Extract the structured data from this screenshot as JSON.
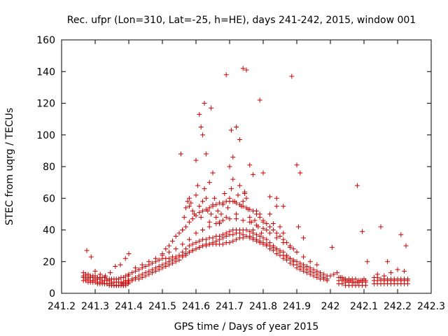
{
  "chart_data": {
    "type": "scatter",
    "title": "Rec. ufpr (Lon=310, Lat=-25, h=HE), days 241-242, 2015, window 001",
    "xlabel": "GPS time / Days of year 2015",
    "ylabel": "STEC from uqrg / TECUs",
    "xlim": [
      241.2,
      242.3
    ],
    "ylim": [
      0,
      160
    ],
    "x_ticks": [
      241.2,
      241.3,
      241.4,
      241.5,
      241.6,
      241.7,
      241.8,
      241.9,
      242.0,
      242.1,
      242.2,
      242.3
    ],
    "x_tick_labels": [
      "241.2",
      "241.3",
      "241.4",
      "241.5",
      "241.6",
      "241.7",
      "241.8",
      "241.9",
      "242",
      "242.1",
      "242.2",
      "242.3"
    ],
    "y_ticks": [
      0,
      20,
      40,
      60,
      80,
      100,
      120,
      140,
      160
    ],
    "y_tick_labels": [
      "0",
      "20",
      "40",
      "60",
      "80",
      "100",
      "120",
      "140",
      "160"
    ],
    "grid": false,
    "legend": "none",
    "marker": "+",
    "color": "#cc0000",
    "series": [
      {
        "x": [
          241.265,
          241.272,
          241.279,
          241.286,
          241.293,
          241.3,
          241.307,
          241.314,
          241.321,
          241.328,
          241.335,
          241.342,
          241.349,
          241.356,
          241.363,
          241.37,
          241.377,
          241.384,
          241.391,
          241.398,
          241.265,
          241.272,
          241.279,
          241.286,
          241.293,
          241.3,
          241.307,
          241.314,
          241.321,
          241.328,
          241.335,
          241.342,
          241.349,
          241.356,
          241.363,
          241.37,
          241.377,
          241.384,
          241.391,
          241.398,
          241.265,
          241.272,
          241.279,
          241.286,
          241.293,
          241.3,
          241.307,
          241.314,
          241.321,
          241.328,
          241.335,
          241.342,
          241.349,
          241.356,
          241.363,
          241.37,
          241.377,
          241.384,
          241.391,
          241.398,
          241.265,
          241.272,
          241.279,
          241.286,
          241.293,
          241.3,
          241.307,
          241.314,
          241.321,
          241.328,
          241.335,
          241.342,
          241.349,
          241.356,
          241.363,
          241.37,
          241.377,
          241.384,
          241.391,
          241.398,
          241.275,
          241.288,
          241.3,
          241.315,
          241.33,
          241.345,
          241.36,
          241.375,
          241.39,
          241.4
        ],
        "y": [
          10,
          9,
          9,
          8,
          8,
          8,
          7,
          7,
          7,
          6,
          6,
          6,
          6,
          5,
          5,
          5,
          5,
          5,
          6,
          6,
          11,
          11,
          10,
          10,
          10,
          9,
          9,
          9,
          8,
          8,
          8,
          8,
          7,
          7,
          7,
          7,
          7,
          7,
          8,
          8,
          8,
          8,
          7,
          7,
          7,
          7,
          6,
          6,
          6,
          6,
          6,
          5,
          5,
          5,
          5,
          5,
          5,
          5,
          5,
          6,
          13,
          12,
          12,
          11,
          11,
          11,
          10,
          10,
          10,
          10,
          9,
          9,
          9,
          9,
          9,
          9,
          10,
          10,
          11,
          11,
          27,
          23,
          14,
          12,
          11,
          13,
          17,
          18,
          22,
          25
        ]
      },
      {
        "x": [
          241.4,
          241.41,
          241.42,
          241.43,
          241.44,
          241.45,
          241.46,
          241.47,
          241.48,
          241.49,
          241.5,
          241.51,
          241.52,
          241.53,
          241.54,
          241.55,
          241.56,
          241.57,
          241.58,
          241.59,
          241.6,
          241.61,
          241.62,
          241.63,
          241.64,
          241.65,
          241.66,
          241.67,
          241.68,
          241.69,
          241.7,
          241.71,
          241.72,
          241.73,
          241.74,
          241.75,
          241.76,
          241.77,
          241.78,
          241.79,
          241.8,
          241.81,
          241.82,
          241.83,
          241.84,
          241.85,
          241.86,
          241.87,
          241.88,
          241.89,
          241.9,
          241.91,
          241.92,
          241.93,
          241.94,
          241.95,
          241.96,
          241.97,
          241.98,
          241.99
        ],
        "y": [
          8,
          9,
          10,
          11,
          12,
          13,
          14,
          15,
          16,
          17,
          18,
          19,
          20,
          21,
          22,
          23,
          24,
          25,
          26,
          27,
          28,
          29,
          30,
          31,
          31,
          32,
          33,
          34,
          35,
          36,
          37,
          37,
          38,
          38,
          37,
          36,
          35,
          34,
          33,
          32,
          31,
          30,
          28,
          27,
          25,
          24,
          22,
          21,
          19,
          18,
          16,
          15,
          14,
          13,
          12,
          11,
          10,
          9,
          9,
          8
        ]
      },
      {
        "x": [
          241.4,
          241.41,
          241.42,
          241.43,
          241.44,
          241.45,
          241.46,
          241.47,
          241.48,
          241.49,
          241.5,
          241.51,
          241.52,
          241.53,
          241.54,
          241.55,
          241.56,
          241.57,
          241.58,
          241.59,
          241.6,
          241.61,
          241.62,
          241.63,
          241.64,
          241.65,
          241.66,
          241.67,
          241.68,
          241.69,
          241.7,
          241.71,
          241.72,
          241.73,
          241.74,
          241.75,
          241.76,
          241.77,
          241.78,
          241.79,
          241.8,
          241.81,
          241.82,
          241.83,
          241.84,
          241.85,
          241.86,
          241.87,
          241.88,
          241.89,
          241.9,
          241.91,
          241.92,
          241.93,
          241.94,
          241.95,
          241.96,
          241.97,
          241.98,
          241.99
        ],
        "y": [
          12,
          13,
          14,
          15,
          16,
          17,
          18,
          19,
          20,
          21,
          22,
          22,
          22,
          23,
          23,
          24,
          26,
          28,
          30,
          31,
          32,
          33,
          34,
          34,
          35,
          35,
          36,
          36,
          37,
          38,
          39,
          40,
          40,
          40,
          40,
          40,
          39,
          38,
          37,
          36,
          35,
          34,
          32,
          30,
          28,
          26,
          24,
          23,
          22,
          21,
          20,
          19,
          18,
          17,
          16,
          15,
          14,
          13,
          12,
          11
        ]
      },
      {
        "x": [
          241.42,
          241.44,
          241.46,
          241.48,
          241.5,
          241.52,
          241.54,
          241.56,
          241.58,
          241.6,
          241.62,
          241.64,
          241.66,
          241.68,
          241.7,
          241.72,
          241.74,
          241.76,
          241.78,
          241.8,
          241.82,
          241.84,
          241.86,
          241.88,
          241.9,
          241.92,
          241.94,
          241.96
        ],
        "y": [
          16,
          18,
          20,
          22,
          24,
          26,
          28,
          31,
          34,
          38,
          40,
          42,
          44,
          46,
          47,
          47,
          46,
          45,
          43,
          41,
          38,
          35,
          32,
          29,
          26,
          23,
          20,
          18
        ]
      },
      {
        "x": [
          241.5,
          241.51,
          241.52,
          241.53,
          241.54,
          241.55,
          241.56,
          241.57,
          241.58,
          241.59,
          241.6,
          241.61,
          241.62,
          241.63,
          241.64,
          241.65,
          241.66,
          241.67,
          241.68,
          241.69,
          241.7,
          241.71,
          241.72,
          241.73,
          241.74,
          241.75,
          241.76,
          241.77,
          241.78,
          241.79,
          241.8,
          241.81,
          241.82,
          241.83,
          241.84,
          241.85,
          241.86,
          241.87,
          241.88,
          241.89,
          241.9
        ],
        "y": [
          25,
          28,
          30,
          33,
          36,
          38,
          40,
          42,
          45,
          47,
          49,
          51,
          52,
          53,
          54,
          55,
          56,
          57,
          57,
          58,
          58,
          58,
          57,
          56,
          55,
          54,
          53,
          52,
          50,
          48,
          46,
          44,
          42,
          40,
          38,
          36,
          34,
          32,
          30,
          28,
          26
        ]
      },
      {
        "x": [
          241.38,
          241.39,
          241.4,
          241.41,
          241.42,
          241.43,
          241.44,
          241.45,
          241.46,
          241.47,
          241.48,
          241.49,
          241.5,
          241.51,
          241.52,
          241.53,
          241.54,
          241.55,
          241.56,
          241.57,
          241.58,
          241.59,
          241.6,
          241.61,
          241.62,
          241.63,
          241.64,
          241.65,
          241.66,
          241.67,
          241.68,
          241.69,
          241.7,
          241.71,
          241.72,
          241.73,
          241.74,
          241.75,
          241.76,
          241.77,
          241.78,
          241.79,
          241.8,
          241.81,
          241.82,
          241.83,
          241.84,
          241.85,
          241.86,
          241.87,
          241.88,
          241.89,
          241.9,
          241.91,
          241.92,
          241.93,
          241.94,
          241.95,
          241.96,
          241.97,
          241.98,
          241.99
        ],
        "y": [
          6,
          7,
          7,
          8,
          9,
          9,
          10,
          11,
          12,
          13,
          14,
          15,
          16,
          17,
          18,
          19,
          20,
          21,
          23,
          24,
          26,
          27,
          28,
          29,
          30,
          30,
          31,
          31,
          31,
          31,
          31,
          32,
          32,
          33,
          34,
          35,
          35,
          36,
          36,
          35,
          34,
          33,
          32,
          31,
          30,
          29,
          28,
          27,
          26,
          24,
          22,
          20,
          18,
          17,
          16,
          15,
          14,
          13,
          12,
          11,
          10,
          9
        ]
      },
      {
        "x": [
          241.56,
          241.565,
          241.57,
          241.575,
          241.58,
          241.585,
          241.59,
          241.595,
          241.6,
          241.605,
          241.61,
          241.615,
          241.62,
          241.625,
          241.63,
          241.635,
          241.64,
          241.645,
          241.65,
          241.655,
          241.66,
          241.665,
          241.67,
          241.675,
          241.68,
          241.685,
          241.69,
          241.695,
          241.7,
          241.705,
          241.71,
          241.715,
          241.72,
          241.725,
          241.73,
          241.735,
          241.74,
          241.745,
          241.75,
          241.755,
          241.76,
          241.765,
          241.77,
          241.775,
          241.78,
          241.785,
          241.79,
          241.795,
          241.8,
          241.81,
          241.82,
          241.83,
          241.84,
          241.85,
          241.86
        ],
        "y": [
          40,
          48,
          54,
          58,
          60,
          57,
          52,
          50,
          62,
          68,
          55,
          48,
          58,
          66,
          60,
          52,
          45,
          50,
          56,
          60,
          48,
          52,
          44,
          50,
          56,
          63,
          48,
          54,
          60,
          66,
          72,
          58,
          50,
          62,
          68,
          55,
          58,
          64,
          60,
          53,
          48,
          45,
          40,
          46,
          52,
          42,
          50,
          38,
          45,
          40,
          50,
          44,
          55,
          42,
          38
        ]
      },
      {
        "x": [
          242.025,
          242.035,
          242.045,
          242.055,
          242.065,
          242.075,
          242.085,
          242.095,
          242.105,
          242.025,
          242.035,
          242.045,
          242.055,
          242.065,
          242.075,
          242.085,
          242.095,
          242.105,
          242.025,
          242.035,
          242.045,
          242.055,
          242.065,
          242.075,
          242.085,
          242.095,
          242.105,
          242.0,
          242.01,
          242.02,
          242.03,
          242.04,
          242.05,
          242.06,
          242.07,
          242.08,
          242.09,
          242.1
        ],
        "y": [
          6,
          6,
          5,
          5,
          5,
          5,
          5,
          5,
          5,
          8,
          8,
          7,
          7,
          7,
          7,
          7,
          7,
          7,
          10,
          10,
          9,
          9,
          9,
          9,
          8,
          8,
          8,
          11,
          12,
          13,
          10,
          9,
          8,
          8,
          7,
          7,
          8,
          9
        ]
      },
      {
        "x": [
          242.13,
          242.14,
          242.15,
          242.16,
          242.17,
          242.18,
          242.19,
          242.2,
          242.21,
          242.22,
          242.23,
          242.13,
          242.14,
          242.15,
          242.16,
          242.17,
          242.18,
          242.19,
          242.2,
          242.21,
          242.22,
          242.23,
          242.13,
          242.14,
          242.15,
          242.16,
          242.17,
          242.18,
          242.19,
          242.2,
          242.21,
          242.22,
          242.23,
          242.14,
          242.16,
          242.18,
          242.2,
          242.22
        ],
        "y": [
          6,
          6,
          6,
          6,
          6,
          6,
          6,
          6,
          6,
          6,
          6,
          8,
          8,
          8,
          8,
          8,
          8,
          8,
          8,
          8,
          8,
          8,
          10,
          10,
          9,
          9,
          9,
          9,
          9,
          9,
          9,
          9,
          9,
          12,
          11,
          13,
          15,
          14
        ]
      },
      {
        "x": [
          241.555,
          241.6,
          241.61,
          241.615,
          241.62,
          241.625,
          241.63,
          241.645,
          241.65,
          241.69,
          241.705,
          241.71,
          241.72,
          241.73,
          241.74,
          241.75,
          241.76,
          241.79,
          241.8,
          241.84,
          241.885,
          241.9,
          241.91,
          242.005,
          242.08,
          242.095,
          242.11,
          242.15,
          242.17,
          242.21,
          242.225,
          241.58,
          241.64,
          241.7,
          241.67,
          241.745,
          241.77,
          241.82,
          241.86,
          241.905,
          241.92
        ],
        "y": [
          88,
          84,
          113,
          105,
          100,
          120,
          88,
          117,
          76,
          138,
          103,
          86,
          105,
          97,
          142,
          141,
          81,
          122,
          76,
          60,
          137,
          81,
          76,
          29,
          68,
          39,
          20,
          42,
          20,
          37,
          30,
          55,
          70,
          80,
          45,
          63,
          75,
          61,
          55,
          42,
          35
        ]
      }
    ]
  }
}
